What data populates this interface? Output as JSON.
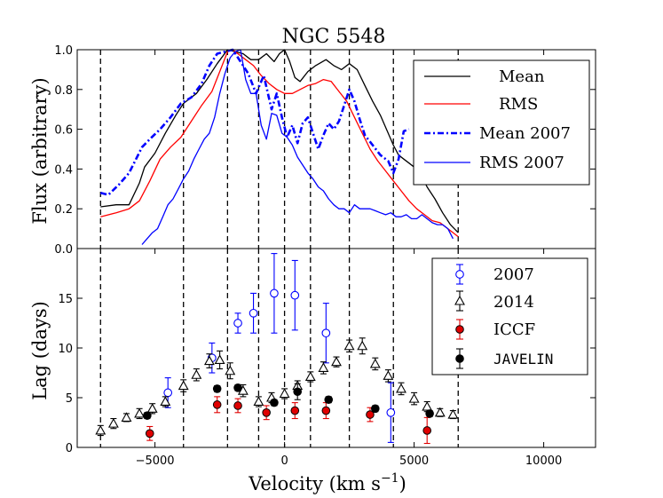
{
  "chart_data": [
    {
      "type": "line",
      "title": "NGC 5548",
      "ylabel": "Flux (arbitrary)",
      "xlim": [
        -8000,
        12000
      ],
      "ylim": [
        0.0,
        1.0
      ],
      "yticks": [
        "0.0",
        "0.2",
        "0.4",
        "0.6",
        "0.8",
        "1.0"
      ],
      "legend": [
        "Mean",
        "RMS",
        "Mean 2007",
        "RMS 2007"
      ],
      "legend_position": "top-right",
      "vlines": [
        -7100,
        -3900,
        -2200,
        -1000,
        0,
        1000,
        2500,
        4200,
        6700
      ],
      "series": [
        {
          "name": "Mean",
          "color": "#000000",
          "style": "solid",
          "x": [
            -7100,
            -6500,
            -6000,
            -5600,
            -5400,
            -5000,
            -4600,
            -4200,
            -3900,
            -3400,
            -3000,
            -2600,
            -2200,
            -1900,
            -1600,
            -1300,
            -1000,
            -700,
            -400,
            -200,
            0,
            200,
            400,
            600,
            900,
            1200,
            1600,
            1900,
            2200,
            2500,
            2800,
            3100,
            3400,
            3700,
            4000,
            4200,
            4400,
            4600,
            4800,
            5000,
            5200,
            5500,
            5800,
            6100,
            6400,
            6700
          ],
          "y": [
            0.21,
            0.22,
            0.22,
            0.33,
            0.41,
            0.48,
            0.58,
            0.67,
            0.73,
            0.78,
            0.85,
            0.93,
            1.0,
            0.99,
            0.98,
            0.95,
            0.95,
            0.98,
            0.94,
            0.98,
            1.0,
            0.94,
            0.86,
            0.84,
            0.89,
            0.92,
            0.95,
            0.92,
            0.9,
            0.93,
            0.9,
            0.82,
            0.74,
            0.67,
            0.58,
            0.52,
            0.47,
            0.45,
            0.43,
            0.41,
            0.39,
            0.31,
            0.25,
            0.18,
            0.12,
            0.08
          ]
        },
        {
          "name": "RMS",
          "color": "#ff0000",
          "style": "solid",
          "x": [
            -7100,
            -6500,
            -6000,
            -5600,
            -5200,
            -4800,
            -4400,
            -4000,
            -3600,
            -3200,
            -2800,
            -2500,
            -2200,
            -2000,
            -1800,
            -1500,
            -1200,
            -900,
            -600,
            -300,
            0,
            300,
            600,
            900,
            1200,
            1500,
            1800,
            2100,
            2400,
            2700,
            3000,
            3300,
            3600,
            3900,
            4200,
            4500,
            4800,
            5100,
            5400,
            5700,
            6000,
            6300,
            6700
          ],
          "y": [
            0.16,
            0.18,
            0.2,
            0.24,
            0.34,
            0.45,
            0.51,
            0.56,
            0.64,
            0.72,
            0.79,
            0.89,
            0.99,
            1.0,
            0.98,
            0.95,
            0.92,
            0.87,
            0.83,
            0.8,
            0.78,
            0.78,
            0.8,
            0.82,
            0.83,
            0.85,
            0.84,
            0.79,
            0.74,
            0.66,
            0.58,
            0.5,
            0.44,
            0.39,
            0.34,
            0.29,
            0.24,
            0.2,
            0.17,
            0.14,
            0.13,
            0.1,
            0.06
          ]
        },
        {
          "name": "Mean 2007",
          "color": "#0000ff",
          "style": "dashdot",
          "x": [
            -7100,
            -6800,
            -6400,
            -6000,
            -5500,
            -5200,
            -4800,
            -4400,
            -4000,
            -3600,
            -3200,
            -2900,
            -2600,
            -2300,
            -2000,
            -1700,
            -1400,
            -1100,
            -800,
            -500,
            -300,
            -100,
            100,
            300,
            500,
            700,
            900,
            1100,
            1300,
            1500,
            1700,
            1900,
            2100,
            2300,
            2500,
            2700,
            2900,
            3100,
            3400,
            3700,
            4000,
            4200,
            4400,
            4600,
            4800
          ],
          "y": [
            0.28,
            0.27,
            0.32,
            0.38,
            0.51,
            0.55,
            0.6,
            0.66,
            0.73,
            0.76,
            0.83,
            0.92,
            0.98,
            0.99,
            1.0,
            0.94,
            0.88,
            0.78,
            0.87,
            0.7,
            0.78,
            0.66,
            0.56,
            0.62,
            0.53,
            0.63,
            0.66,
            0.58,
            0.5,
            0.57,
            0.63,
            0.6,
            0.64,
            0.72,
            0.8,
            0.74,
            0.65,
            0.57,
            0.52,
            0.47,
            0.44,
            0.38,
            0.45,
            0.59,
            0.6
          ]
        },
        {
          "name": "RMS 2007",
          "color": "#0000ff",
          "style": "solid",
          "x": [
            -5500,
            -5300,
            -5100,
            -4900,
            -4700,
            -4500,
            -4300,
            -4100,
            -3900,
            -3700,
            -3500,
            -3300,
            -3100,
            -2900,
            -2700,
            -2500,
            -2300,
            -2100,
            -1900,
            -1700,
            -1500,
            -1300,
            -1100,
            -900,
            -700,
            -500,
            -300,
            -100,
            100,
            300,
            500,
            700,
            900,
            1100,
            1300,
            1500,
            1700,
            1900,
            2100,
            2300,
            2500,
            2700,
            2900,
            3100,
            3300,
            3500,
            3700,
            3900,
            4100,
            4300,
            4500,
            4700,
            4900,
            5100,
            5300,
            5500,
            5700,
            5900,
            6100,
            6300,
            6500
          ],
          "y": [
            0.02,
            0.05,
            0.08,
            0.1,
            0.16,
            0.22,
            0.25,
            0.3,
            0.35,
            0.39,
            0.45,
            0.5,
            0.55,
            0.58,
            0.66,
            0.78,
            0.88,
            0.96,
            0.99,
            1.0,
            0.85,
            0.78,
            0.78,
            0.62,
            0.55,
            0.68,
            0.67,
            0.58,
            0.56,
            0.52,
            0.46,
            0.42,
            0.38,
            0.35,
            0.31,
            0.29,
            0.25,
            0.22,
            0.2,
            0.2,
            0.18,
            0.22,
            0.2,
            0.2,
            0.2,
            0.19,
            0.18,
            0.17,
            0.18,
            0.16,
            0.16,
            0.17,
            0.15,
            0.15,
            0.17,
            0.15,
            0.13,
            0.12,
            0.12,
            0.1,
            0.05
          ]
        }
      ]
    },
    {
      "type": "scatter",
      "xlabel": "Velocity (km s",
      "xlabel_sup": "−1",
      "xlabel_close": ")",
      "ylabel": "Lag (days)",
      "xlim": [
        -8000,
        12000
      ],
      "ylim": [
        0,
        20
      ],
      "xticks": [
        "−5000",
        "0",
        "5000",
        "10000"
      ],
      "yticks": [
        "0",
        "5",
        "10",
        "15"
      ],
      "legend": [
        "2007",
        "2014",
        "ICCF",
        "JAVELIN"
      ],
      "legend_position": "top-right",
      "series": [
        {
          "name": "2007",
          "marker": "open-circle",
          "color": "#0000ff",
          "x": [
            -4500,
            -2800,
            -1800,
            -1200,
            -400,
            400,
            1600,
            4100
          ],
          "y": [
            5.5,
            9.0,
            12.5,
            13.5,
            15.5,
            15.3,
            11.5,
            3.5
          ],
          "err": [
            1.5,
            1.5,
            1.0,
            2.0,
            4.0,
            3.5,
            3.0,
            3.0
          ]
        },
        {
          "name": "2014",
          "marker": "open-triangle",
          "color": "#000000",
          "x": [
            -7100,
            -6600,
            -6100,
            -5600,
            -5100,
            -4600,
            -3900,
            -3400,
            -2900,
            -2500,
            -2100,
            -1600,
            -1000,
            -500,
            0,
            500,
            1000,
            1500,
            2000,
            2500,
            3000,
            3500,
            4000,
            4500,
            5000,
            5500,
            6000,
            6500
          ],
          "y": [
            1.7,
            2.4,
            3.0,
            3.4,
            3.9,
            4.6,
            6.2,
            7.3,
            8.7,
            8.8,
            7.7,
            5.7,
            4.6,
            5.0,
            5.4,
            6.2,
            7.1,
            8.0,
            8.6,
            10.2,
            10.2,
            8.4,
            7.2,
            5.9,
            4.9,
            4.1,
            3.5,
            3.3
          ],
          "err": [
            0.5,
            0.5,
            0.4,
            0.5,
            0.5,
            0.5,
            0.6,
            0.6,
            0.7,
            0.9,
            0.8,
            0.6,
            0.5,
            0.5,
            0.5,
            0.5,
            0.5,
            0.6,
            0.5,
            0.6,
            0.8,
            0.6,
            0.6,
            0.6,
            0.6,
            0.5,
            0.4,
            0.4
          ]
        },
        {
          "name": "ICCF",
          "marker": "filled-circle",
          "color": "#e00000",
          "x": [
            -5200,
            -2600,
            -1800,
            -700,
            400,
            1600,
            3300,
            5500
          ],
          "y": [
            1.4,
            4.3,
            4.2,
            3.5,
            3.7,
            3.7,
            3.3,
            1.7
          ],
          "err": [
            0.7,
            0.8,
            0.7,
            0.7,
            0.8,
            0.8,
            0.7,
            1.3
          ]
        },
        {
          "name": "JAVELIN",
          "marker": "filled-circle",
          "color": "#000000",
          "x": [
            -5300,
            -2600,
            -1800,
            -400,
            500,
            1700,
            3500,
            5600
          ],
          "y": [
            3.2,
            5.9,
            6.0,
            4.5,
            5.6,
            4.8,
            3.9,
            3.4
          ],
          "err": [
            0.3,
            0.3,
            0.3,
            0.3,
            0.8,
            0.3,
            0.3,
            0.3
          ]
        }
      ]
    }
  ]
}
